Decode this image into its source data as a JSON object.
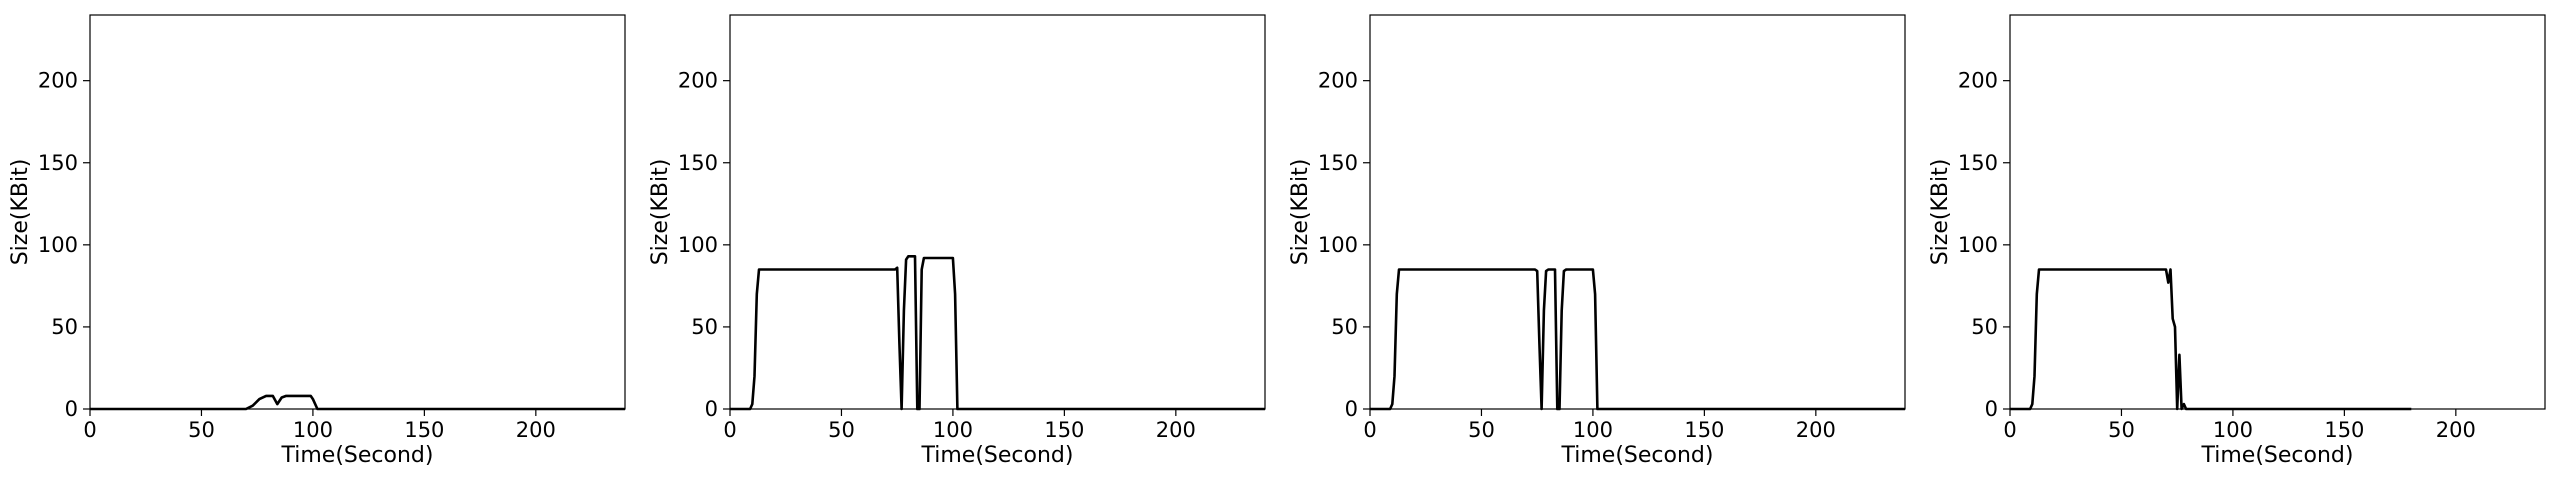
{
  "chart_data": [
    {
      "type": "line",
      "xlabel": "Time(Second)",
      "ylabel": "Size(KBit)",
      "xlim": [
        0,
        240
      ],
      "ylim": [
        0,
        240
      ],
      "xticks": [
        0,
        50,
        100,
        150,
        200
      ],
      "yticks": [
        0,
        50,
        100,
        150,
        200
      ],
      "series": [
        {
          "x": [
            0,
            70,
            73,
            76,
            79,
            82,
            84,
            86,
            88,
            99,
            100,
            102,
            240
          ],
          "y": [
            0,
            0,
            2,
            6,
            8,
            8,
            3,
            7,
            8,
            8,
            6,
            0,
            0
          ]
        }
      ]
    },
    {
      "type": "line",
      "xlabel": "Time(Second)",
      "ylabel": "Size(KBit)",
      "xlim": [
        0,
        240
      ],
      "ylim": [
        0,
        240
      ],
      "xticks": [
        0,
        50,
        100,
        150,
        200
      ],
      "yticks": [
        0,
        50,
        100,
        150,
        200
      ],
      "series": [
        {
          "x": [
            0,
            9,
            10,
            11,
            12,
            13,
            74,
            75,
            76,
            77,
            78,
            79,
            80,
            83,
            84,
            85,
            86,
            87,
            88,
            100,
            101,
            102,
            240
          ],
          "y": [
            0,
            0,
            3,
            20,
            70,
            85,
            85,
            86,
            40,
            0,
            60,
            91,
            93,
            93,
            0,
            0,
            85,
            92,
            92,
            92,
            70,
            0,
            0
          ]
        }
      ]
    },
    {
      "type": "line",
      "xlabel": "Time(Second)",
      "ylabel": "Size(KBit)",
      "xlim": [
        0,
        240
      ],
      "ylim": [
        0,
        240
      ],
      "xticks": [
        0,
        50,
        100,
        150,
        200
      ],
      "yticks": [
        0,
        50,
        100,
        150,
        200
      ],
      "series": [
        {
          "x": [
            0,
            9,
            10,
            11,
            12,
            13,
            74,
            75,
            76,
            77,
            78,
            79,
            80,
            83,
            84,
            85,
            86,
            87,
            88,
            100,
            101,
            102,
            240
          ],
          "y": [
            0,
            0,
            3,
            20,
            70,
            85,
            85,
            84,
            40,
            0,
            60,
            84,
            85,
            85,
            0,
            0,
            60,
            84,
            85,
            85,
            70,
            0,
            0
          ]
        }
      ]
    },
    {
      "type": "line",
      "xlabel": "Time(Second)",
      "ylabel": "Size(KBit)",
      "xlim": [
        0,
        240
      ],
      "ylim": [
        0,
        240
      ],
      "xticks": [
        0,
        50,
        100,
        150,
        200
      ],
      "yticks": [
        0,
        50,
        100,
        150,
        200
      ],
      "series": [
        {
          "x": [
            0,
            9,
            10,
            11,
            12,
            13,
            70,
            71,
            72,
            73,
            74,
            75,
            76,
            77,
            78,
            79,
            80,
            180
          ],
          "y": [
            0,
            0,
            3,
            20,
            70,
            85,
            85,
            77,
            85,
            55,
            50,
            0,
            33,
            0,
            3,
            0,
            0,
            0
          ]
        }
      ]
    }
  ]
}
